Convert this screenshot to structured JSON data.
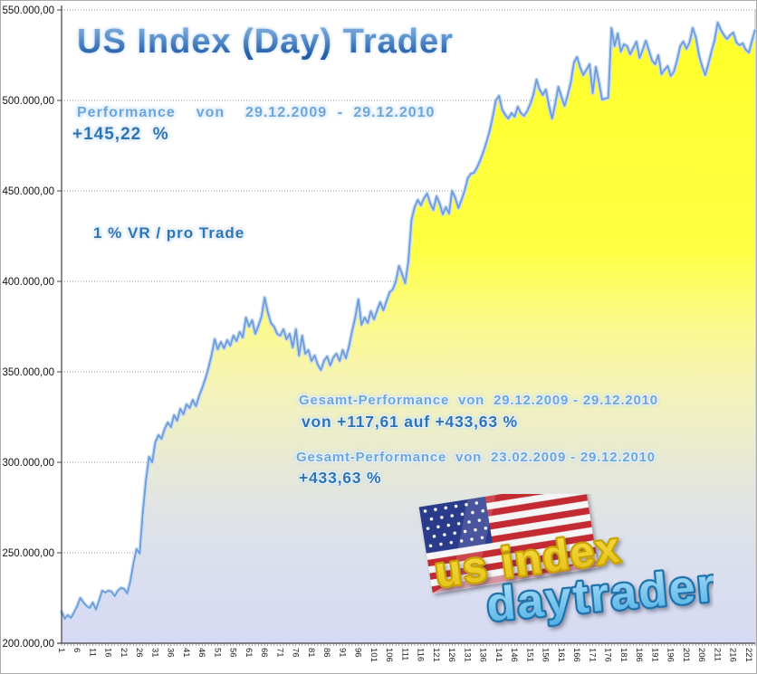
{
  "title": "US Index (Day) Trader",
  "annotations": {
    "performance_label": "Performance  von  29.12.2009 - 29.12.2010",
    "performance_value": "+145,22  %",
    "risk_note": "1 % VR / pro Trade",
    "gesamt1_label": "Gesamt-Performance  von  29.12.2009 - 29.12.2010",
    "gesamt1_value": "von +117,61 auf +433,63 %",
    "gesamt2_label": "Gesamt-Performance  von  23.02.2009 - 29.12.2010",
    "gesamt2_value": "+433,63 %"
  },
  "logo": {
    "line1": "us index",
    "line2": "daytrader"
  },
  "colors": {
    "value_blue": "#2e74b5",
    "label_blue": "#6ca6d9",
    "line": "#6d9cd9",
    "line_glow": "#c9dcf4",
    "area_top": "#ffff28",
    "area_bottom": "#d7daf3",
    "grid": "#8c8c8c",
    "axis": "#3f3f3f",
    "flag_red": "#c32a33",
    "flag_blue": "#2b3a8c",
    "logo_yellow": "#f2d51e",
    "logo_blue": "#7cc4ea"
  },
  "chart_data": {
    "type": "area",
    "title": "US Index (Day) Trader",
    "xlabel": "",
    "ylabel": "",
    "unit": "EUR (thousands)",
    "grid": "horizontal-dotted",
    "legend": "none",
    "xlim": [
      1,
      223
    ],
    "ylim_thousands": [
      200,
      550
    ],
    "y_tick_values_thousands": [
      550,
      500,
      450,
      400,
      350,
      300,
      250,
      200
    ],
    "y_tick_labels": [
      "550.000,00",
      "500.000,00",
      "450.000,00",
      "400.000,00",
      "350.000,00",
      "300.000,00",
      "250.000,00",
      "200.000,00"
    ],
    "x_tick_labels": [
      1,
      6,
      11,
      16,
      21,
      26,
      31,
      36,
      41,
      46,
      51,
      56,
      61,
      66,
      71,
      76,
      81,
      86,
      91,
      96,
      101,
      106,
      111,
      116,
      121,
      126,
      131,
      136,
      141,
      146,
      151,
      156,
      161,
      166,
      171,
      176,
      181,
      186,
      191,
      196,
      201,
      206,
      211,
      216,
      221
    ],
    "series": [
      {
        "name": "equity_curve",
        "values": [
          217.5,
          213.5,
          215.5,
          214,
          217,
          220.5,
          225,
          222.5,
          220.5,
          219.5,
          222.5,
          218.5,
          223.5,
          229,
          228,
          229,
          228.5,
          226,
          229,
          230.5,
          230,
          227.5,
          234,
          244,
          252,
          249.5,
          272,
          290,
          303,
          300,
          311,
          315,
          313,
          318.5,
          322,
          319.5,
          326,
          323,
          329.5,
          326.5,
          332,
          330,
          334.5,
          331,
          336.5,
          341,
          346,
          352,
          359,
          368,
          362.5,
          366.5,
          363,
          367.5,
          364.5,
          370,
          367,
          372,
          369,
          380,
          375,
          378.5,
          371,
          375.5,
          380.5,
          391,
          383,
          377,
          375,
          371,
          370,
          373.5,
          368,
          371,
          363.5,
          373.5,
          359,
          370,
          360,
          362,
          356,
          359,
          354,
          351,
          356,
          358.5,
          353.5,
          358,
          360,
          356,
          362,
          357.5,
          364,
          372.5,
          380,
          390,
          376,
          380,
          377,
          383.5,
          379,
          384,
          388.5,
          384,
          389,
          394,
          395.5,
          400,
          408.5,
          404,
          399,
          411,
          434,
          441,
          445,
          442,
          446,
          448.5,
          443,
          439.5,
          447,
          443,
          437,
          441,
          437.5,
          450,
          446,
          440.5,
          445,
          450,
          457,
          459.5,
          460,
          463,
          467,
          471.5,
          477,
          483,
          491,
          500,
          502.5,
          495,
          492,
          490,
          493,
          491,
          496.5,
          493,
          491.5,
          494,
          498,
          503,
          511.5,
          506,
          503,
          506,
          497,
          490,
          498,
          507.5,
          502,
          497,
          503,
          510,
          521,
          524,
          518,
          514,
          517,
          520,
          504,
          518.5,
          510,
          500.5,
          501,
          501.5,
          540,
          530,
          537,
          527,
          531,
          530,
          525.5,
          529,
          532.5,
          523.5,
          528,
          533,
          527.5,
          522,
          520,
          525,
          514.5,
          517,
          519,
          513.5,
          516,
          522,
          530,
          532.5,
          528.5,
          532,
          540,
          535,
          525,
          519,
          514,
          520,
          527,
          533,
          543,
          539,
          536,
          534,
          536,
          537.5,
          532,
          530.5,
          531.5,
          528,
          526.5,
          533,
          539
        ]
      }
    ]
  }
}
